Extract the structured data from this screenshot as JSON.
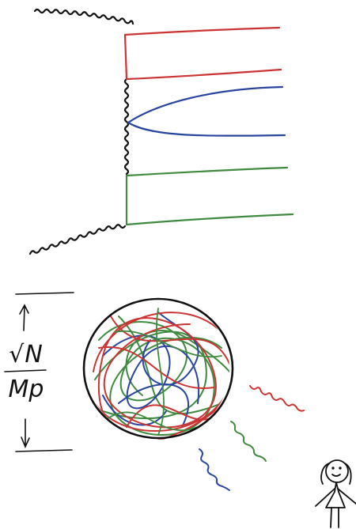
{
  "formula": {
    "numerator": "√N",
    "denominator": "Mp"
  },
  "colors": {
    "ink": "#111111",
    "red": "#cc3333",
    "blue": "#2a45a0",
    "green": "#3f8a3f",
    "background": "#ffffff"
  },
  "icons": [
    "wavy-graviton-line",
    "black-hole-sphere",
    "stick-figure-observer",
    "double-arrow"
  ]
}
